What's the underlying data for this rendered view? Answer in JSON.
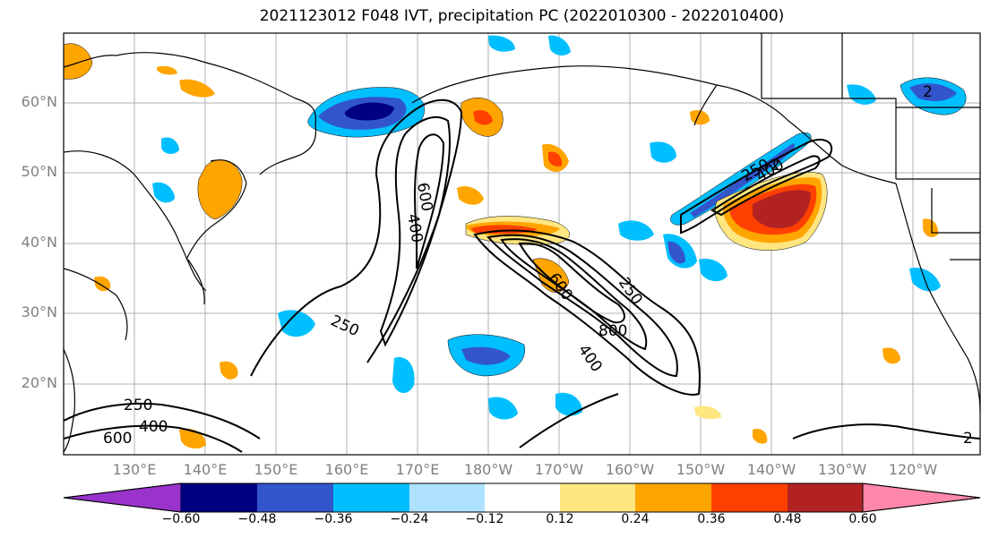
{
  "title": "2021123012 F048 IVT, precipitation PC (2022010300 - 2022010400)",
  "lat_labels": [
    "60°N",
    "50°N",
    "40°N",
    "30°N",
    "20°N"
  ],
  "lon_labels": [
    "130°E",
    "140°E",
    "150°E",
    "160°E",
    "170°E",
    "180°W",
    "170°W",
    "160°W",
    "150°W",
    "140°W",
    "130°W",
    "120°W"
  ],
  "contour_labels": [
    "600",
    "400",
    "250",
    "800",
    "600",
    "400",
    "250",
    "250",
    "400",
    "600",
    "250",
    "400",
    "2",
    "2",
    "2"
  ],
  "colorbar": {
    "colors": [
      "#9933cc",
      "#000080",
      "#3355cc",
      "#00bfff",
      "#aee2ff",
      "#ffffff",
      "#ffe680",
      "#ffa500",
      "#ff4000",
      "#b22222",
      "#ff88aa"
    ],
    "ticks": [
      "−0.60",
      "−0.48",
      "−0.36",
      "−0.24",
      "−0.12",
      "0.12",
      "0.24",
      "0.36",
      "0.48",
      "0.60"
    ]
  }
}
